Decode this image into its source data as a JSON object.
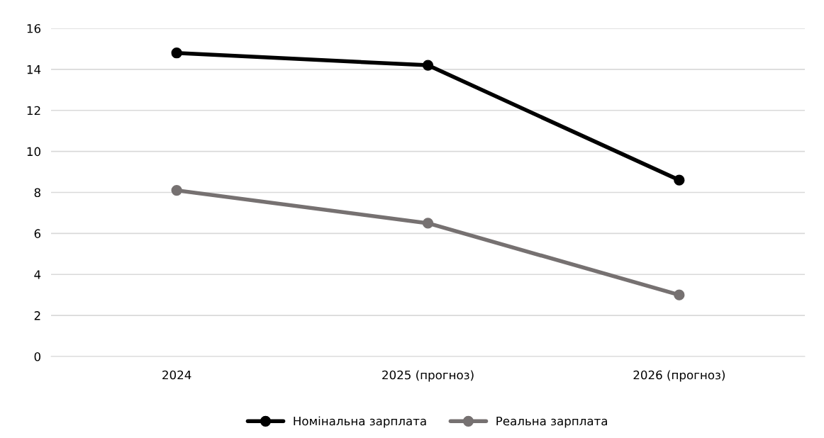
{
  "chart_data": {
    "type": "line",
    "categories": [
      "2024",
      "2025 (прогноз)",
      "2026 (прогноз)"
    ],
    "series": [
      {
        "name": "Номінальна зарплата",
        "color": "#000000",
        "values": [
          14.8,
          14.2,
          8.6
        ]
      },
      {
        "name": "Реальна зарплата",
        "color": "#767171",
        "values": [
          8.1,
          6.5,
          3.0
        ]
      }
    ],
    "ylim": [
      0,
      16
    ],
    "yticks": [
      0,
      2,
      4,
      6,
      8,
      10,
      12,
      14,
      16
    ],
    "grid": "y",
    "legend": "bottom",
    "marker": "circle",
    "line_style": "solid"
  }
}
